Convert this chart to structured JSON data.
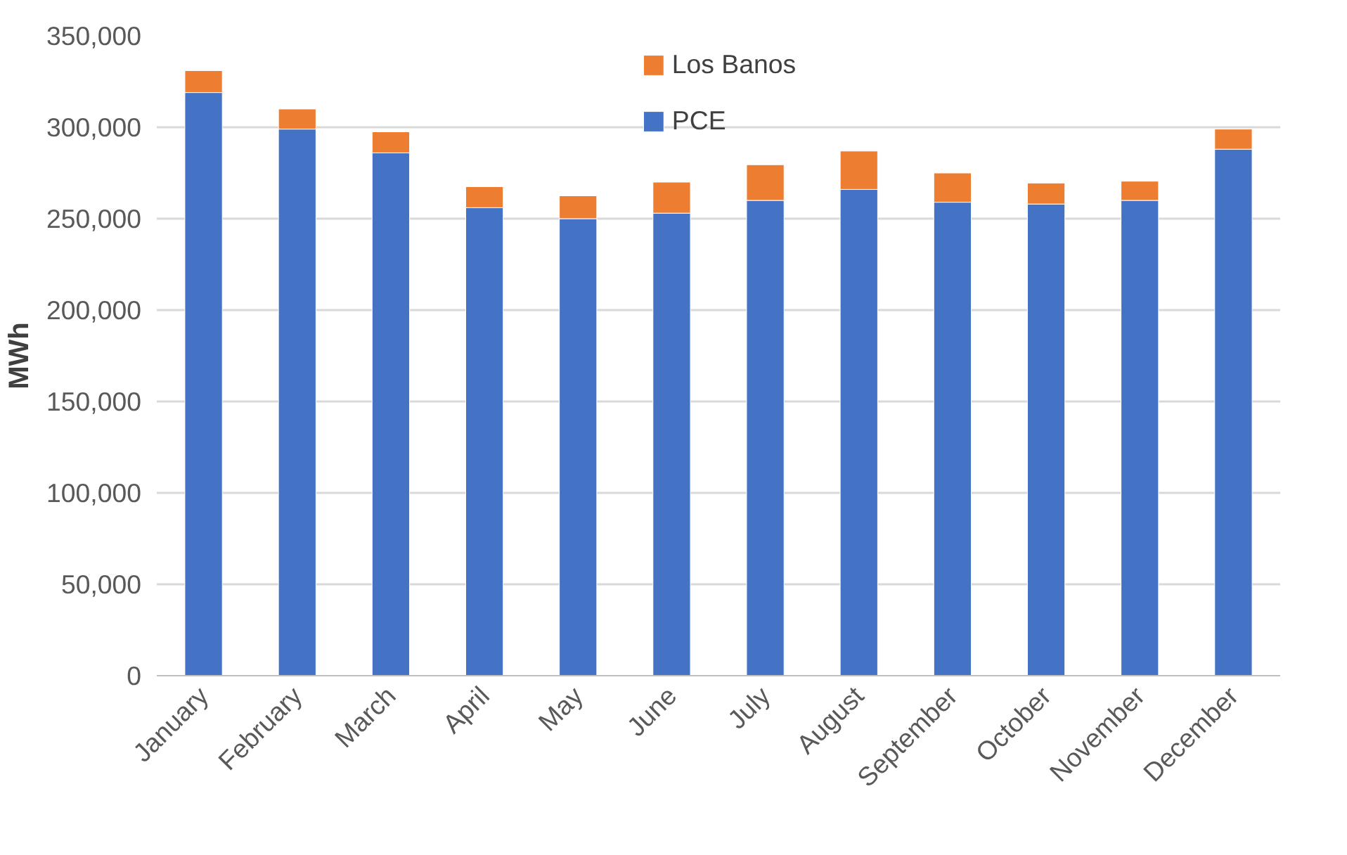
{
  "chart_data": {
    "type": "bar",
    "stacked": true,
    "ylabel": "MWh",
    "categories": [
      "January",
      "February",
      "March",
      "April",
      "May",
      "June",
      "July",
      "August",
      "September",
      "October",
      "November",
      "December"
    ],
    "series": [
      {
        "name": "PCE",
        "color": "#4472c4",
        "values": [
          319000,
          299000,
          286000,
          256000,
          250000,
          253000,
          260000,
          266000,
          259000,
          258000,
          260000,
          288000
        ]
      },
      {
        "name": "Los Banos",
        "color": "#ed7d31",
        "values": [
          12000,
          11000,
          11500,
          11500,
          12500,
          17000,
          19500,
          21000,
          16000,
          11500,
          10500,
          11000
        ]
      }
    ],
    "ylim": [
      0,
      350000
    ],
    "yticks": [
      {
        "value": 0,
        "label": "0"
      },
      {
        "value": 50000,
        "label": "50,000"
      },
      {
        "value": 100000,
        "label": "100,000"
      },
      {
        "value": 150000,
        "label": "150,000"
      },
      {
        "value": 200000,
        "label": "200,000"
      },
      {
        "value": 250000,
        "label": "250,000"
      },
      {
        "value": 300000,
        "label": "300,000"
      },
      {
        "value": 350000,
        "label": "350,000"
      }
    ],
    "grid": "y",
    "legend": "top"
  }
}
